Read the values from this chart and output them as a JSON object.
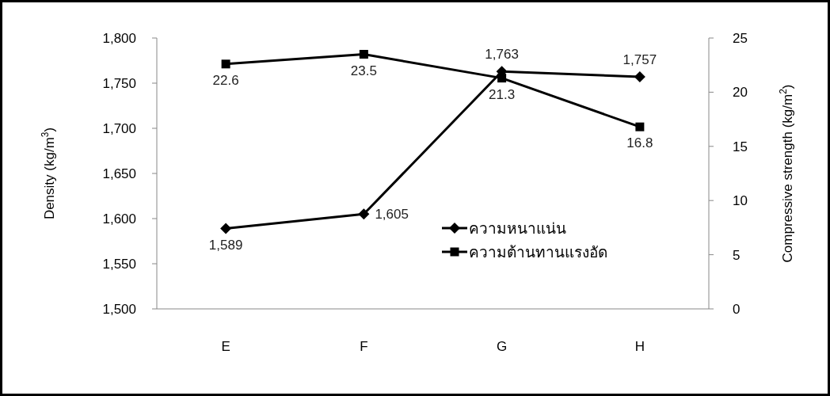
{
  "chart_data": {
    "type": "line",
    "ylabel": "Density (kg/m$^{3}$)",
    "y2label": "Compressive strength (kg/m$^{2}$)",
    "categories": [
      "E",
      "F",
      "G",
      "H"
    ],
    "series": [
      {
        "name": "ความหนาแน่น",
        "color": "#000000",
        "marker": "diamond",
        "values": [
          1589,
          1605,
          1763,
          1757
        ],
        "value_labels": [
          "1,589",
          "1,605",
          "1,763",
          "1,757"
        ]
      },
      {
        "name": "ความต้านทานแรงอัด",
        "color": "#000000",
        "marker": "square",
        "axis": "y2",
        "values": [
          22.6,
          23.5,
          21.3,
          16.8
        ],
        "value_labels": [
          "22.6",
          "23.5",
          "21.3",
          "16.8"
        ]
      }
    ],
    "ylim": [
      1500,
      1800
    ],
    "yticks": [
      {
        "value": 1500,
        "label": "1,500"
      },
      {
        "value": 1550,
        "label": "1,550"
      },
      {
        "value": 1600,
        "label": "1,600"
      },
      {
        "value": 1650,
        "label": "1,650"
      },
      {
        "value": 1700,
        "label": "1,700"
      },
      {
        "value": 1750,
        "label": "1,750"
      },
      {
        "value": 1800,
        "label": "1,800"
      }
    ],
    "y2lim": [
      0,
      25
    ],
    "y2ticks": [
      0,
      5,
      10,
      15,
      20,
      25
    ],
    "legend": "right",
    "grid": false,
    "line_style": "solid"
  }
}
